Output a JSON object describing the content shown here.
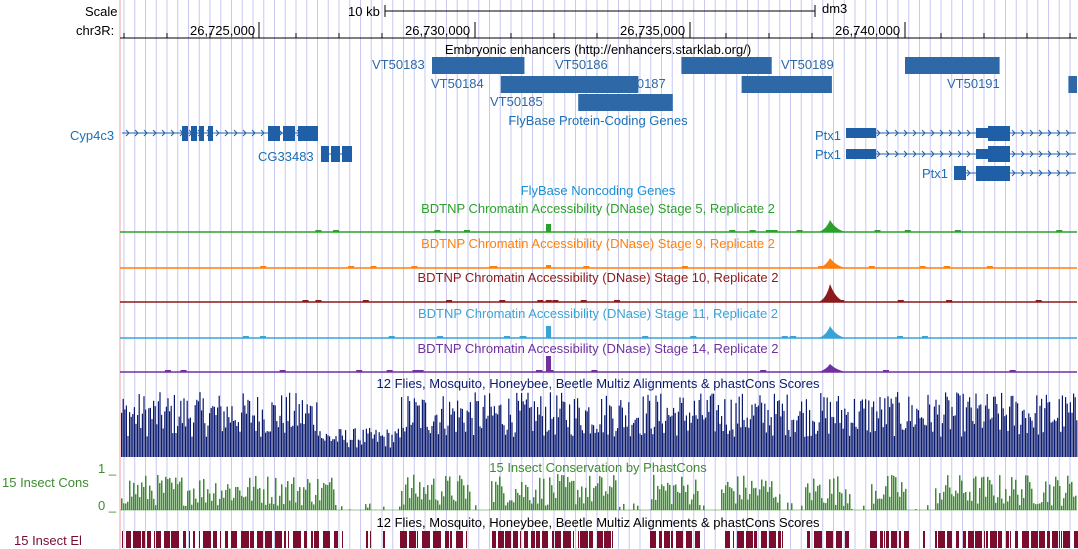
{
  "ruler": {
    "scale_label": "Scale",
    "chrom_label": "chr3R:",
    "scale_bar_label": "10 kb",
    "assembly": "dm3",
    "positions": [
      "26,725,000",
      "26,730,000",
      "26,735,000",
      "26,740,000"
    ]
  },
  "tracks": {
    "enhancers": {
      "title": "Embryonic enhancers (http://enhancers.starklab.org/)",
      "items": [
        {
          "name": "VT50183",
          "start_kb": 0.0,
          "end_kb": 2.15
        },
        {
          "name": "VT50184",
          "start_kb": 1.6,
          "end_kb": 4.8
        },
        {
          "name": "VT50185",
          "start_kb": 3.4,
          "end_kb": 5.6
        },
        {
          "name": "VT50186",
          "start_kb": 5.8,
          "end_kb": 7.9
        },
        {
          "name": "VT50187",
          "start_kb": 7.2,
          "end_kb": 9.3
        },
        {
          "name": "VT50189",
          "start_kb": 11.0,
          "end_kb": 13.2
        },
        {
          "name": "VT50191",
          "start_kb": 14.8,
          "end_kb": 16.5
        }
      ]
    },
    "coding_genes": {
      "title": "FlyBase Protein-Coding Genes",
      "genes": [
        "Cyp4c3",
        "CG33483",
        "Ptx1",
        "Ptx1",
        "Ptx1"
      ]
    },
    "noncoding_genes": {
      "title": "FlyBase Noncoding Genes"
    },
    "dnase": [
      {
        "title": "BDTNP Chromatin Accessibility (DNase) Stage 5, Replicate 2",
        "color": "#2ca02c"
      },
      {
        "title": "BDTNP Chromatin Accessibility (DNase) Stage 9, Replicate 2",
        "color": "#ff7f0e"
      },
      {
        "title": "BDTNP Chromatin Accessibility (DNase) Stage 10, Replicate 2",
        "color": "#8b1a1a"
      },
      {
        "title": "BDTNP Chromatin Accessibility (DNase) Stage 11, Replicate 2",
        "color": "#3aa3d6"
      },
      {
        "title": "BDTNP Chromatin Accessibility (DNase) Stage 14, Replicate 2",
        "color": "#7030a0"
      }
    ],
    "multiz": {
      "title": "12 Flies, Mosquito, Honeybee, Beetle Multiz Alignments & phastCons Scores",
      "color": "#0a1a6e"
    },
    "phastcons": {
      "side_label": "15 Insect Cons",
      "title": "15 Insect Conservation by PhastCons",
      "ymax_label": "1 _",
      "ymin_label": "0 _",
      "color": "#3d8c2e"
    },
    "elements": {
      "side_label": "15 Insect El",
      "title": "12 Flies, Mosquito, Honeybee, Beetle Multiz Alignments & phastCons Scores",
      "color": "#7a0c2e"
    }
  },
  "colors": {
    "gene": "#1f5fa8",
    "enhancer": "#2f68a6",
    "label_blue": "#1a6fb5",
    "grid": "#c8c8f0",
    "edge": "#f0a0a0"
  }
}
